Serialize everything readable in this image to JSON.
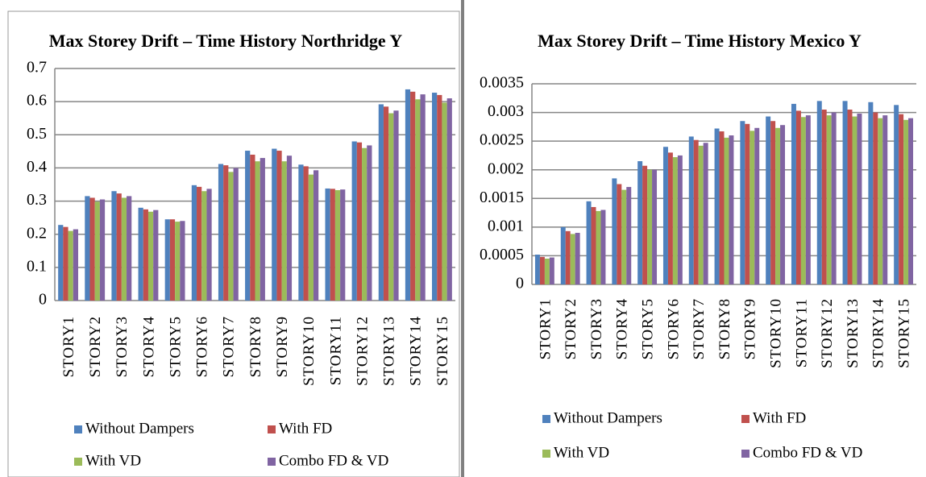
{
  "chart_data": [
    {
      "type": "bar",
      "title": "Max Storey Drift – Time History Northridge Y",
      "categories": [
        "STORY1",
        "STORY2",
        "STORY3",
        "STORY4",
        "STORY5",
        "STORY6",
        "STORY7",
        "STORY8",
        "STORY9",
        "STORY10",
        "STORY11",
        "STORY12",
        "STORY13",
        "STORY14",
        "STORY15"
      ],
      "series": [
        {
          "name": "Without Dampers",
          "color": "#4f81bd",
          "values": [
            0.228,
            0.315,
            0.33,
            0.28,
            0.245,
            0.348,
            0.412,
            0.452,
            0.458,
            0.41,
            0.338,
            0.48,
            0.592,
            0.637,
            0.627
          ]
        },
        {
          "name": "With FD",
          "color": "#c0504d",
          "values": [
            0.222,
            0.31,
            0.323,
            0.275,
            0.245,
            0.343,
            0.408,
            0.44,
            0.452,
            0.405,
            0.337,
            0.477,
            0.585,
            0.63,
            0.62
          ]
        },
        {
          "name": "With VD",
          "color": "#9bbb59",
          "values": [
            0.21,
            0.298,
            0.31,
            0.268,
            0.238,
            0.33,
            0.388,
            0.42,
            0.42,
            0.38,
            0.333,
            0.46,
            0.565,
            0.607,
            0.597
          ]
        },
        {
          "name": "Combo FD & VD",
          "color": "#8064a2",
          "values": [
            0.215,
            0.305,
            0.315,
            0.273,
            0.24,
            0.337,
            0.4,
            0.43,
            0.437,
            0.393,
            0.335,
            0.468,
            0.573,
            0.622,
            0.61
          ]
        }
      ],
      "ylim": [
        0,
        0.7
      ],
      "yticks": [
        0,
        0.1,
        0.2,
        0.3,
        0.4,
        0.5,
        0.6,
        0.7
      ],
      "grid": true
    },
    {
      "type": "bar",
      "title": "Max Storey Drift – Time History Mexico Y",
      "categories": [
        "STORY1",
        "STORY2",
        "STORY3",
        "STORY4",
        "STORY5",
        "STORY6",
        "STORY7",
        "STORY8",
        "STORY9",
        "STORY10",
        "STORY11",
        "STORY12",
        "STORY13",
        "STORY14",
        "STORY15"
      ],
      "series": [
        {
          "name": "Without Dampers",
          "color": "#4f81bd",
          "values": [
            0.00052,
            0.001,
            0.00145,
            0.00185,
            0.00215,
            0.0024,
            0.00258,
            0.00272,
            0.00285,
            0.00293,
            0.00315,
            0.0032,
            0.0032,
            0.00318,
            0.00313
          ]
        },
        {
          "name": "With FD",
          "color": "#c0504d",
          "values": [
            0.00048,
            0.00093,
            0.00135,
            0.00175,
            0.00207,
            0.0023,
            0.00252,
            0.00267,
            0.0028,
            0.00285,
            0.00303,
            0.00305,
            0.00305,
            0.003,
            0.00297
          ]
        },
        {
          "name": "With VD",
          "color": "#9bbb59",
          "values": [
            0.00045,
            0.00088,
            0.00128,
            0.00165,
            0.002,
            0.00222,
            0.00242,
            0.00256,
            0.00268,
            0.00273,
            0.00292,
            0.00295,
            0.00293,
            0.0029,
            0.00287
          ]
        },
        {
          "name": "Combo FD & VD",
          "color": "#8064a2",
          "values": [
            0.00047,
            0.0009,
            0.0013,
            0.0017,
            0.002,
            0.00225,
            0.00247,
            0.0026,
            0.00273,
            0.00278,
            0.00295,
            0.003,
            0.00298,
            0.00295,
            0.0029
          ]
        }
      ],
      "ylim": [
        0,
        0.0035
      ],
      "yticks": [
        0,
        0.0005,
        0.001,
        0.0015,
        0.002,
        0.0025,
        0.003,
        0.0035
      ],
      "grid": true
    }
  ]
}
